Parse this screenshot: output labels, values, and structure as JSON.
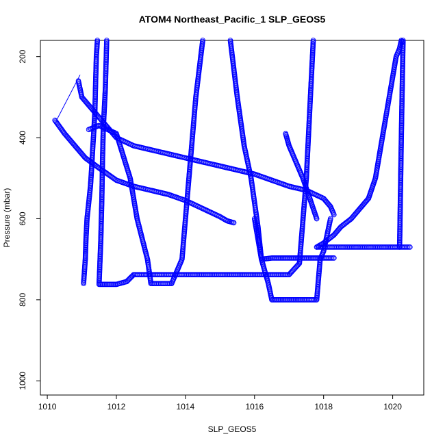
{
  "chart_data": {
    "type": "scatter",
    "title": "ATOM4 Northeast_Pacific_1 SLP_GEOS5",
    "xlabel": "SLP_GEOS5",
    "ylabel": "Pressure (mbar)",
    "xlim": [
      1009.8,
      1020.9
    ],
    "ylim": [
      1035,
      160
    ],
    "y_reversed": true,
    "x_ticks": [
      1010,
      1012,
      1014,
      1016,
      1018,
      1020
    ],
    "y_ticks": [
      200,
      400,
      600,
      800,
      1000
    ],
    "grid": false,
    "marker": "open-circle",
    "color": "#0000ff",
    "series": [
      {
        "x": [
          1011.05,
          1011.1,
          1011.12,
          1011.15,
          1011.2,
          1011.25,
          1011.28,
          1011.3,
          1011.32,
          1011.35,
          1011.38,
          1011.4,
          1011.42,
          1011.45
        ],
        "y": [
          760,
          700,
          650,
          600,
          560,
          520,
          480,
          450,
          420,
          380,
          330,
          260,
          200,
          160
        ]
      },
      {
        "x": [
          1011.5,
          1011.55,
          1011.58,
          1011.6,
          1011.62,
          1011.65,
          1011.68,
          1011.7,
          1011.72
        ],
        "y": [
          760,
          650,
          550,
          450,
          380,
          330,
          280,
          220,
          160
        ]
      },
      {
        "x": [
          1010.22,
          1010.5,
          1010.8,
          1011.1,
          1011.5,
          1012.0,
          1012.5,
          1013.0,
          1013.5,
          1014.0,
          1014.5,
          1015.0,
          1015.2,
          1015.4
        ],
        "y": [
          357,
          390,
          420,
          450,
          475,
          505,
          520,
          530,
          540,
          555,
          575,
          595,
          605,
          610
        ]
      },
      {
        "x": [
          1010.9,
          1011.0,
          1011.2,
          1011.5,
          1012.0,
          1012.5,
          1013.0,
          1013.5,
          1014.0,
          1014.5,
          1015.0,
          1016.0,
          1017.0,
          1017.5,
          1018.0,
          1018.2,
          1018.3
        ],
        "y": [
          260,
          300,
          320,
          350,
          400,
          420,
          430,
          440,
          450,
          460,
          470,
          490,
          520,
          530,
          550,
          570,
          590
        ]
      },
      {
        "x": [
          1011.2,
          1011.5,
          1012.0,
          1012.4,
          1012.6,
          1012.9,
          1013.0,
          1013.6,
          1013.9,
          1014.1,
          1014.3,
          1014.5
        ],
        "y": [
          380,
          370,
          390,
          500,
          600,
          700,
          760,
          760,
          700,
          500,
          300,
          160
        ]
      },
      {
        "x": [
          1011.5,
          1012.0,
          1012.3,
          1012.5,
          1014.0,
          1015.0,
          1016.0,
          1016.5,
          1017.0,
          1017.3,
          1017.5,
          1017.7
        ],
        "y": [
          762,
          762,
          755,
          738,
          738,
          738,
          738,
          738,
          738,
          710,
          500,
          160
        ]
      },
      {
        "x": [
          1015.3,
          1015.5,
          1015.7,
          1015.9,
          1016.0,
          1016.1,
          1016.2
        ],
        "y": [
          160,
          300,
          420,
          500,
          560,
          620,
          700
        ]
      },
      {
        "x": [
          1016.0,
          1016.2,
          1016.4,
          1016.5,
          1017.0,
          1017.5,
          1017.8,
          1017.9,
          1018.0,
          1018.2
        ],
        "y": [
          600,
          700,
          760,
          800,
          800,
          800,
          800,
          700,
          680,
          600
        ]
      },
      {
        "x": [
          1016.2,
          1016.5,
          1017.0,
          1017.5,
          1018.0,
          1018.3
        ],
        "y": [
          700,
          697,
          697,
          697,
          697,
          697
        ]
      },
      {
        "x": [
          1016.9,
          1017.0,
          1017.2,
          1017.4,
          1017.6,
          1017.8
        ],
        "y": [
          390,
          420,
          460,
          500,
          550,
          600
        ]
      },
      {
        "x": [
          1017.8,
          1018.0,
          1018.3,
          1018.5,
          1018.8,
          1019.0,
          1019.3,
          1019.5,
          1019.6,
          1019.7,
          1019.8,
          1019.9,
          1020.0,
          1020.1,
          1020.2,
          1020.25,
          1020.3
        ],
        "y": [
          670,
          660,
          640,
          620,
          600,
          580,
          550,
          500,
          450,
          400,
          350,
          300,
          250,
          200,
          180,
          160,
          165
        ]
      },
      {
        "x": [
          1017.8,
          1018.5,
          1019.0,
          1019.5,
          1020.0,
          1020.2,
          1020.4,
          1020.5
        ],
        "y": [
          670,
          670,
          670,
          670,
          670,
          670,
          670,
          670
        ]
      },
      {
        "x": [
          1020.2,
          1020.25,
          1020.3
        ],
        "y": [
          670,
          400,
          160
        ]
      }
    ]
  }
}
